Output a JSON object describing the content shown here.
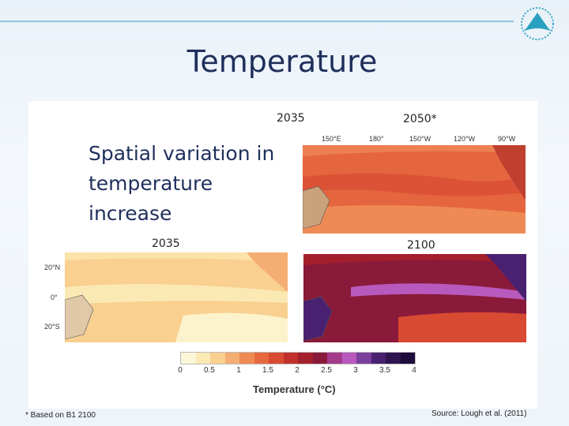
{
  "slide": {
    "title": "Temperature",
    "heading_lines": [
      "Spatial variation in",
      "temperature",
      "increase"
    ]
  },
  "maps": {
    "top_right_label": "2035",
    "top_right_label2": "2050*",
    "bottom_left_label": "2035",
    "bottom_right_label": "2100"
  },
  "axes": {
    "longitudes": [
      "150°E",
      "180°",
      "150°W",
      "120°W",
      "90°W"
    ],
    "latitudes": [
      "20°N",
      "0°",
      "20°S"
    ]
  },
  "colorbar": {
    "ticks": [
      "0",
      "0.5",
      "1",
      "1.5",
      "2",
      "2.5",
      "3",
      "3.5",
      "4"
    ],
    "colors": [
      "#fbf6d8",
      "#fbe9b4",
      "#f9d090",
      "#f5ae72",
      "#ef8a55",
      "#e6683e",
      "#d94a32",
      "#c2302c",
      "#a41f2c",
      "#8a1a3a",
      "#a43a8a",
      "#b85abd",
      "#7b3f9e",
      "#4a2070",
      "#2e1450",
      "#1e0c3a"
    ],
    "title": "Temperature (°C)"
  },
  "footnotes": {
    "left": "* Based on B1 2100",
    "right": "Source: Lough et al. (2011)"
  }
}
